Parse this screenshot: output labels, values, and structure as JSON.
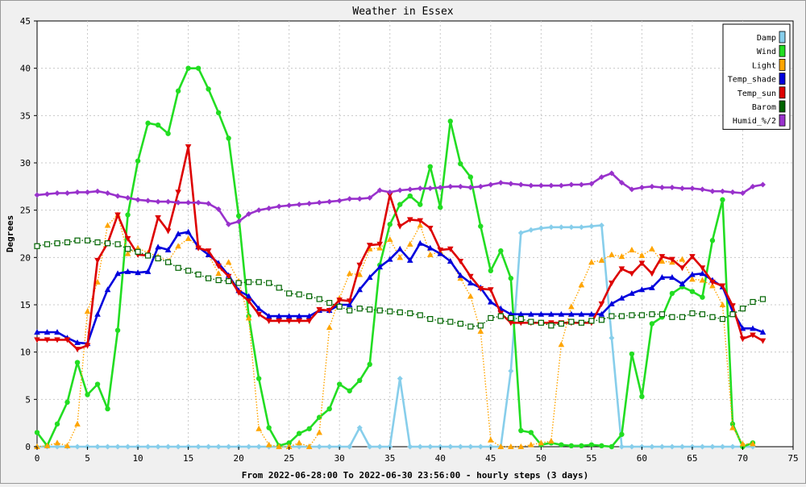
{
  "chart_data": {
    "type": "line",
    "title": "Weather in Essex",
    "xlabel": "From 2022-06-28:00 To 2022-06-30 23:56:00 - hourly steps (3 days)",
    "ylabel": "Degrees",
    "xlim": [
      0,
      75
    ],
    "ylim": [
      0,
      45
    ],
    "x_ticks": [
      0,
      5,
      10,
      15,
      20,
      25,
      30,
      35,
      40,
      45,
      50,
      55,
      60,
      65,
      70,
      75
    ],
    "y_ticks": [
      0,
      5,
      10,
      15,
      20,
      25,
      30,
      35,
      40,
      45
    ],
    "grid": true,
    "legend_position": "top-right",
    "series": [
      {
        "name": "Damp",
        "color": "#87ceeb",
        "line": "solid",
        "marker": "diamond",
        "values": [
          0,
          0,
          0,
          0,
          0,
          0,
          0,
          0,
          0,
          0,
          0,
          0,
          0,
          0,
          0,
          0,
          0,
          0,
          0,
          0,
          0,
          0,
          0,
          0,
          0,
          0,
          0,
          0,
          0,
          0,
          0,
          0,
          2,
          0,
          0,
          0,
          7.2,
          0,
          0,
          0,
          0,
          0,
          0,
          0,
          0,
          0,
          0,
          8,
          22.6,
          22.9,
          23.1,
          23.2,
          23.2,
          23.2,
          23.2,
          23.3,
          23.4,
          11.5,
          0,
          0,
          0,
          0,
          0,
          0,
          0,
          0,
          0,
          0,
          0,
          0,
          0,
          0
        ]
      },
      {
        "name": "Wind",
        "color": "#22dd22",
        "line": "solid",
        "marker": "circle",
        "values": [
          1.5,
          0.1,
          2.4,
          4.7,
          8.9,
          5.5,
          6.6,
          4,
          12.3,
          24.5,
          30.2,
          34.2,
          34,
          33.1,
          37.6,
          40,
          40,
          37.8,
          35.3,
          32.6,
          24.4,
          13.8,
          7.2,
          2,
          0.1,
          0.4,
          1.4,
          1.9,
          3.1,
          4,
          6.6,
          5.9,
          7,
          8.7,
          19.2,
          23.5,
          25.6,
          26.5,
          25.6,
          29.6,
          25.3,
          34.4,
          29.9,
          28.5,
          23.3,
          18.6,
          20.7,
          17.8,
          1.7,
          1.5,
          0.2,
          0.4,
          0.2,
          0.1,
          0.1,
          0.2,
          0.1,
          0,
          1.3,
          9.8,
          5.3,
          13,
          13.7,
          16.2,
          16.9,
          16.4,
          15.8,
          21.8,
          26.1,
          2.4,
          0,
          0.4
        ]
      },
      {
        "name": "Light",
        "color": "#ffa500",
        "line": "dotted",
        "marker": "triangle-up",
        "values": [
          0,
          0.1,
          0.4,
          0.1,
          2.4,
          14.3,
          17.4,
          23.4,
          24.5,
          20.4,
          21,
          20.5,
          20.1,
          19.6,
          21.2,
          22,
          21.2,
          20.3,
          18.3,
          19.5,
          17.5,
          13.6,
          1.9,
          0.2,
          0,
          0,
          0.4,
          0,
          1.5,
          12.6,
          15.7,
          18.3,
          18.2,
          20.9,
          21,
          21.9,
          20,
          21.4,
          23.4,
          20.3,
          20.6,
          19.6,
          17.8,
          15.9,
          12.2,
          0.7,
          0,
          0,
          0,
          0.2,
          0.4,
          0.6,
          10.8,
          14.8,
          17.1,
          19.5,
          19.7,
          20.3,
          20.1,
          20.8,
          20.2,
          20.9,
          19.6,
          19.5,
          19.8,
          17.7,
          17.6,
          17,
          15,
          2,
          0.3,
          0.3
        ]
      },
      {
        "name": "Temp_shade",
        "color": "#0000dd",
        "line": "solid",
        "marker": "triangle-up",
        "values": [
          12.1,
          12.1,
          12.1,
          11.5,
          11,
          10.9,
          14,
          16.6,
          18.3,
          18.5,
          18.4,
          18.5,
          21.1,
          20.8,
          22.5,
          22.7,
          21.1,
          20.3,
          19.4,
          18.1,
          16.5,
          15.9,
          14.6,
          13.8,
          13.8,
          13.8,
          13.8,
          13.8,
          14.4,
          14.4,
          15,
          15,
          16.6,
          17.9,
          19,
          19.8,
          20.9,
          19.7,
          21.5,
          21,
          20.4,
          19.6,
          18.1,
          17.3,
          16.8,
          15.3,
          14.6,
          14,
          14,
          14,
          14,
          14,
          14,
          14,
          14,
          14,
          14,
          15.1,
          15.7,
          16.2,
          16.6,
          16.8,
          17.9,
          17.9,
          17.2,
          18.2,
          18.3,
          17.6,
          16.9,
          14.3,
          12.5,
          12.5,
          12.1
        ]
      },
      {
        "name": "Temp_sun",
        "color": "#dd0000",
        "line": "solid",
        "marker": "triangle-down",
        "values": [
          11.3,
          11.3,
          11.3,
          11.3,
          10.3,
          10.7,
          19.7,
          21.5,
          24.5,
          22,
          20.3,
          20.2,
          24.2,
          22.8,
          26.9,
          31.7,
          21,
          20.7,
          19.1,
          18,
          16.3,
          15.4,
          14,
          13.3,
          13.3,
          13.3,
          13.3,
          13.3,
          14.5,
          14.4,
          15.5,
          15.4,
          19.2,
          21.3,
          21.4,
          26.6,
          23.3,
          24,
          23.9,
          23.1,
          20.8,
          20.9,
          19.6,
          18,
          16.7,
          16.6,
          14.1,
          13.1,
          13.1,
          13.1,
          13.1,
          13.1,
          13.1,
          13.1,
          13.1,
          13.1,
          15.1,
          17.3,
          18.8,
          18.3,
          19.4,
          18.3,
          20.1,
          19.8,
          18.9,
          20.1,
          18.9,
          17.4,
          17,
          14.9,
          11.4,
          11.8,
          11.2
        ]
      },
      {
        "name": "Barom",
        "color": "#006400",
        "line": "dotted",
        "marker": "square-open",
        "values": [
          21.2,
          21.4,
          21.5,
          21.6,
          21.8,
          21.8,
          21.6,
          21.5,
          21.4,
          20.9,
          20.6,
          20.2,
          19.9,
          19.5,
          18.9,
          18.6,
          18.2,
          17.8,
          17.6,
          17.5,
          17.3,
          17.4,
          17.4,
          17.3,
          16.8,
          16.2,
          16.1,
          15.9,
          15.6,
          15.2,
          14.8,
          14.4,
          14.6,
          14.5,
          14.4,
          14.3,
          14.2,
          14.1,
          13.9,
          13.5,
          13.3,
          13.2,
          13,
          12.7,
          12.8,
          13.6,
          13.8,
          13.6,
          13.5,
          13.2,
          13.1,
          12.8,
          13,
          13.2,
          13.1,
          13.3,
          13.4,
          13.8,
          13.8,
          13.9,
          13.9,
          14,
          14,
          13.7,
          13.7,
          14.1,
          14,
          13.7,
          13.5,
          14,
          14.6,
          15.3,
          15.6
        ]
      },
      {
        "name": "Humid_%/2",
        "color": "#9932cc",
        "line": "solid",
        "marker": "diamond",
        "values": [
          26.6,
          26.7,
          26.8,
          26.8,
          26.9,
          26.9,
          27,
          26.8,
          26.5,
          26.3,
          26.1,
          26,
          25.9,
          25.9,
          25.8,
          25.8,
          25.8,
          25.7,
          25.1,
          23.5,
          23.8,
          24.6,
          25,
          25.2,
          25.4,
          25.5,
          25.6,
          25.7,
          25.8,
          25.9,
          26,
          26.2,
          26.2,
          26.3,
          27.1,
          26.9,
          27.1,
          27.2,
          27.3,
          27.3,
          27.4,
          27.5,
          27.5,
          27.4,
          27.5,
          27.7,
          27.9,
          27.8,
          27.7,
          27.6,
          27.6,
          27.6,
          27.6,
          27.7,
          27.7,
          27.8,
          28.5,
          28.9,
          27.9,
          27.2,
          27.4,
          27.5,
          27.4,
          27.4,
          27.3,
          27.3,
          27.2,
          27,
          27,
          26.9,
          26.8,
          27.5,
          27.7
        ]
      }
    ]
  }
}
